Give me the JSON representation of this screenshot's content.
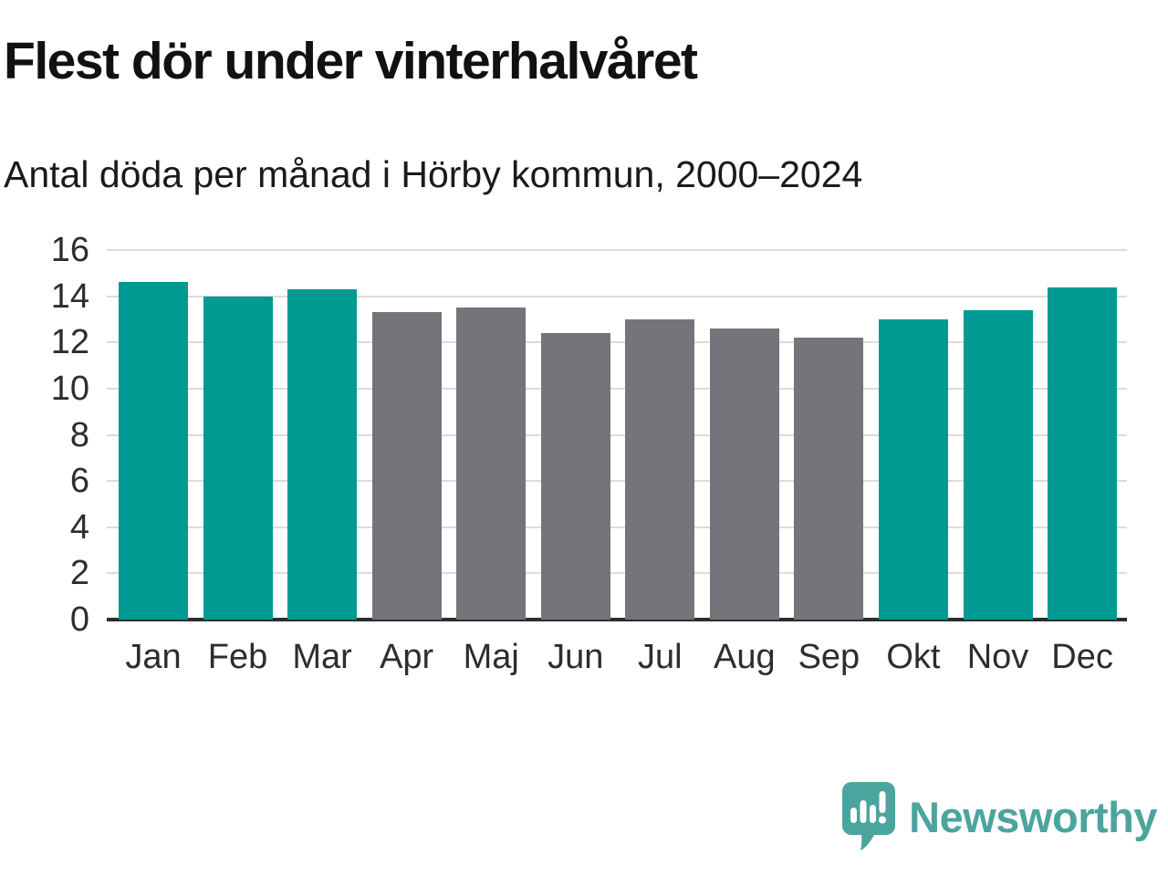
{
  "title": "Flest dör under vinterhalvåret",
  "subtitle": "Antal döda per månad i Hörby kommun, 2000–2024",
  "chart_data": {
    "type": "bar",
    "categories": [
      "Jan",
      "Feb",
      "Mar",
      "Apr",
      "Maj",
      "Jun",
      "Jul",
      "Aug",
      "Sep",
      "Okt",
      "Nov",
      "Dec"
    ],
    "values": [
      14.6,
      14.0,
      14.3,
      13.3,
      13.5,
      12.4,
      13.0,
      12.6,
      12.2,
      13.0,
      13.4,
      14.4
    ],
    "bar_color_keys": [
      "teal",
      "teal",
      "teal",
      "gray",
      "gray",
      "gray",
      "gray",
      "gray",
      "gray",
      "teal",
      "teal",
      "teal"
    ],
    "colors": {
      "teal": "#009a92",
      "gray": "#74747a"
    },
    "yticks": [
      0,
      2,
      4,
      6,
      8,
      10,
      12,
      14,
      16
    ],
    "ylim": [
      0,
      16
    ],
    "grid": true,
    "legend": "none",
    "xlabel": "",
    "ylabel": ""
  },
  "branding": {
    "logo_text": "Newsworthy",
    "logo_color": "#4ca49e",
    "logo_icon_name": "newsworthy-speech-bubble-chart-icon"
  },
  "style_colors": {
    "grid_line": "#dcdcdc",
    "axis_line": "#2d2d2d",
    "text": "#1a1a1a"
  }
}
